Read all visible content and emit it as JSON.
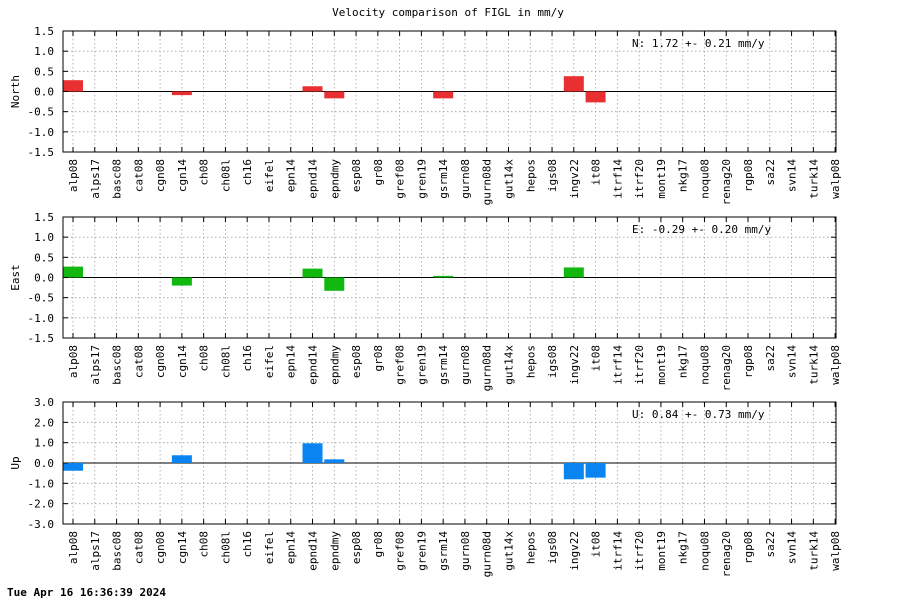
{
  "title": "Velocity comparison of FIGL in mm/y",
  "timestamp": "Tue Apr 16 16:36:39 2024",
  "chart_data": [
    {
      "type": "bar",
      "ylabel": "North",
      "ylim": [
        -1.5,
        1.5
      ],
      "yticks": [
        -1.5,
        -1.0,
        -0.5,
        0.0,
        0.5,
        1.0,
        1.5
      ],
      "ytick_labels": [
        "-1.5",
        "-1.0",
        "-0.5",
        "0.0",
        "0.5",
        "1.0",
        "1.5"
      ],
      "grid": true,
      "annotation": "N:   1.72 +-  0.21 mm/y",
      "color": "#e83030",
      "categories": [
        "alp08",
        "alps17",
        "basc08",
        "cat08",
        "cgn08",
        "cgn14",
        "ch08",
        "ch08l",
        "ch16",
        "eifel",
        "epn14",
        "epnd14",
        "epndmy",
        "esp08",
        "gr08",
        "gref08",
        "gren19",
        "gsrm14",
        "gurn08",
        "gurn08d",
        "gut14x",
        "hepos",
        "igs08",
        "ingv22",
        "it08",
        "itrf14",
        "itrf20",
        "mont19",
        "nkg17",
        "noqu08",
        "renag20",
        "rgp08",
        "sa22",
        "svn14",
        "turk14",
        "walp08"
      ],
      "values": [
        0.28,
        null,
        null,
        null,
        null,
        -0.09,
        null,
        null,
        null,
        null,
        null,
        0.13,
        -0.17,
        null,
        null,
        null,
        null,
        -0.17,
        null,
        null,
        null,
        null,
        null,
        0.38,
        -0.27,
        null,
        null,
        null,
        null,
        null,
        null,
        null,
        null,
        null,
        null,
        null
      ]
    },
    {
      "type": "bar",
      "ylabel": "East",
      "ylim": [
        -1.5,
        1.5
      ],
      "yticks": [
        -1.5,
        -1.0,
        -0.5,
        0.0,
        0.5,
        1.0,
        1.5
      ],
      "ytick_labels": [
        "-1.5",
        "-1.0",
        "-0.5",
        "0.0",
        "0.5",
        "1.0",
        "1.5"
      ],
      "grid": true,
      "annotation": "E:  -0.29 +-  0.20 mm/y",
      "color": "#10b810",
      "categories": [
        "alp08",
        "alps17",
        "basc08",
        "cat08",
        "cgn08",
        "cgn14",
        "ch08",
        "ch08l",
        "ch16",
        "eifel",
        "epn14",
        "epnd14",
        "epndmy",
        "esp08",
        "gr08",
        "gref08",
        "gren19",
        "gsrm14",
        "gurn08",
        "gurn08d",
        "gut14x",
        "hepos",
        "igs08",
        "ingv22",
        "it08",
        "itrf14",
        "itrf20",
        "mont19",
        "nkg17",
        "noqu08",
        "renag20",
        "rgp08",
        "sa22",
        "svn14",
        "turk14",
        "walp08"
      ],
      "values": [
        0.27,
        null,
        null,
        null,
        null,
        -0.2,
        null,
        null,
        null,
        null,
        null,
        0.22,
        -0.33,
        null,
        null,
        null,
        null,
        0.04,
        null,
        null,
        null,
        null,
        null,
        0.25,
        null,
        null,
        null,
        null,
        null,
        null,
        null,
        null,
        null,
        null,
        null,
        null
      ]
    },
    {
      "type": "bar",
      "ylabel": "Up",
      "ylim": [
        -3.0,
        3.0
      ],
      "yticks": [
        -3.0,
        -2.0,
        -1.0,
        0.0,
        1.0,
        2.0,
        3.0
      ],
      "ytick_labels": [
        "-3.0",
        "-2.0",
        "-1.0",
        "0.0",
        "1.0",
        "2.0",
        "3.0"
      ],
      "grid": true,
      "annotation": "U:   0.84 +-  0.73 mm/y",
      "color": "#0a84f0",
      "categories": [
        "alp08",
        "alps17",
        "basc08",
        "cat08",
        "cgn08",
        "cgn14",
        "ch08",
        "ch08l",
        "ch16",
        "eifel",
        "epn14",
        "epnd14",
        "epndmy",
        "esp08",
        "gr08",
        "gref08",
        "gren19",
        "gsrm14",
        "gurn08",
        "gurn08d",
        "gut14x",
        "hepos",
        "igs08",
        "ingv22",
        "it08",
        "itrf14",
        "itrf20",
        "mont19",
        "nkg17",
        "noqu08",
        "renag20",
        "rgp08",
        "sa22",
        "svn14",
        "turk14",
        "walp08"
      ],
      "values": [
        -0.38,
        null,
        null,
        null,
        null,
        0.38,
        null,
        null,
        null,
        null,
        null,
        0.97,
        0.18,
        null,
        null,
        null,
        null,
        null,
        null,
        null,
        null,
        null,
        null,
        -0.8,
        -0.72,
        null,
        null,
        null,
        null,
        null,
        null,
        null,
        null,
        null,
        null,
        null
      ]
    }
  ]
}
